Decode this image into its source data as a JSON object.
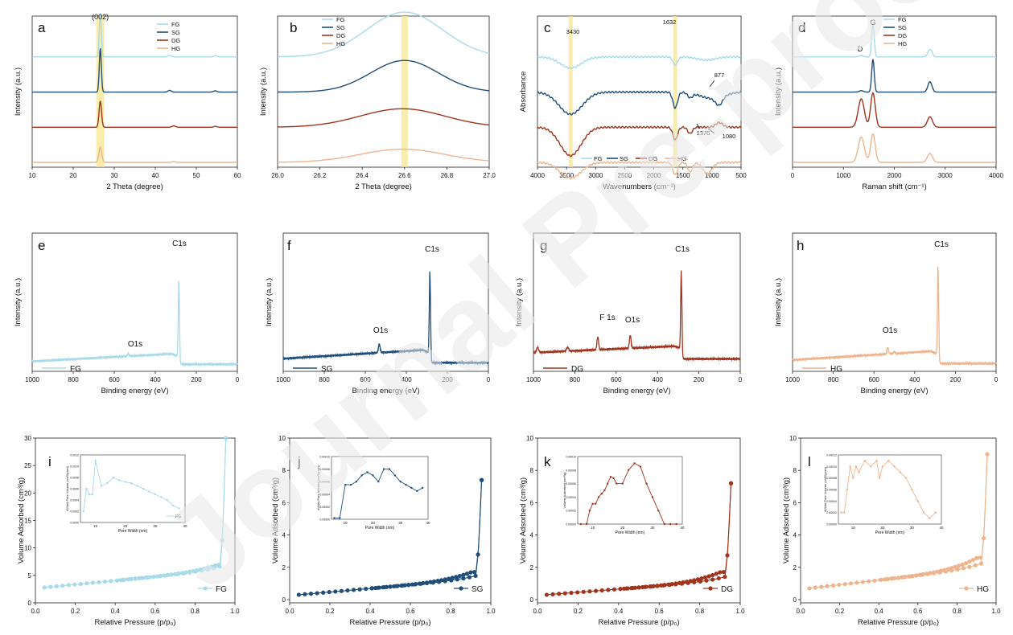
{
  "figure": {
    "colors": {
      "FG": "#a8daea",
      "SG": "#1f4e79",
      "DG": "#a0341c",
      "HG": "#eeb48d",
      "highlight": "#f7e58a"
    },
    "watermark": "Journal Pre-proof"
  },
  "chart_data": [
    {
      "panel": "a",
      "type": "line",
      "title": "",
      "xlabel": "2 Theta (degree)",
      "ylabel": "Intensity (a.u.)",
      "xlim": [
        10,
        60
      ],
      "xticks": [
        "10",
        "20",
        "30",
        "40",
        "50",
        "60"
      ],
      "annotations": [
        "(002)"
      ],
      "highlight_x": [
        26.6
      ],
      "legend": [
        "FG",
        "SG",
        "DG",
        "HG"
      ],
      "legend_position": "top-right",
      "series": [
        {
          "name": "FG",
          "offset": 3,
          "peaks": [
            [
              26.6,
              1.0,
              0.25
            ],
            [
              43.5,
              0.04,
              0.4
            ],
            [
              54.6,
              0.03,
              0.4
            ]
          ]
        },
        {
          "name": "SG",
          "offset": 2,
          "peaks": [
            [
              26.6,
              1.0,
              0.25
            ],
            [
              43.5,
              0.04,
              0.4
            ],
            [
              54.6,
              0.03,
              0.4
            ]
          ]
        },
        {
          "name": "DG",
          "offset": 1,
          "peaks": [
            [
              26.6,
              0.6,
              0.3
            ],
            [
              44.5,
              0.03,
              0.4
            ],
            [
              54.6,
              0.02,
              0.4
            ]
          ]
        },
        {
          "name": "HG",
          "offset": 0,
          "peaks": [
            [
              26.6,
              0.35,
              0.35
            ],
            [
              44.5,
              0.02,
              0.4
            ]
          ]
        }
      ]
    },
    {
      "panel": "b",
      "type": "line",
      "title": "",
      "xlabel": "2 Theta (degree)",
      "ylabel": "Intensity (a.u.)",
      "xlim": [
        26.0,
        27.0
      ],
      "xticks": [
        "26.0",
        "26.2",
        "26.4",
        "26.6",
        "26.8",
        "27.0"
      ],
      "highlight_x": [
        26.6
      ],
      "legend": [
        "FG",
        "SG",
        "DG",
        "HG"
      ],
      "legend_position": "top-left",
      "series": [
        {
          "name": "FG",
          "offset": 3,
          "peaks": [
            [
              26.6,
              0.85,
              0.18
            ]
          ]
        },
        {
          "name": "SG",
          "offset": 2,
          "peaks": [
            [
              26.6,
              0.6,
              0.16
            ]
          ]
        },
        {
          "name": "DG",
          "offset": 1,
          "peaks": [
            [
              26.59,
              0.35,
              0.2
            ]
          ]
        },
        {
          "name": "HG",
          "offset": 0,
          "peaks": [
            [
              26.59,
              0.25,
              0.2
            ]
          ]
        }
      ]
    },
    {
      "panel": "c",
      "type": "line",
      "title": "",
      "xlabel": "Wavenumbers (cm⁻¹)",
      "ylabel": "Absorbance",
      "xlim": [
        4000,
        500
      ],
      "xticks": [
        "4000",
        "3500",
        "3000",
        "2500",
        "2000",
        "1500",
        "1000",
        "500"
      ],
      "annotations": [
        "3430",
        "1632",
        "877",
        "1376",
        "1080"
      ],
      "highlight_x": [
        3430,
        1632
      ],
      "legend": [
        "FG",
        "SG",
        "DG",
        "HG"
      ],
      "legend_position": "bottom",
      "series": [
        {
          "name": "FG",
          "offset": 3,
          "peaks": [
            [
              3430,
              -0.35,
              180
            ],
            [
              1632,
              -0.25,
              40
            ],
            [
              1100,
              -0.1,
              150
            ]
          ]
        },
        {
          "name": "SG",
          "offset": 2,
          "peaks": [
            [
              3430,
              -0.7,
              200
            ],
            [
              1632,
              -0.5,
              40
            ],
            [
              1376,
              -0.15,
              40
            ],
            [
              1000,
              -0.2,
              200
            ],
            [
              877,
              -0.25,
              60
            ]
          ]
        },
        {
          "name": "DG",
          "offset": 1,
          "peaks": [
            [
              3430,
              -0.9,
              180
            ],
            [
              1632,
              -0.4,
              40
            ],
            [
              1376,
              -0.2,
              40
            ],
            [
              877,
              0.15,
              60
            ]
          ]
        },
        {
          "name": "HG",
          "offset": 0,
          "peaks": [
            [
              3430,
              -0.5,
              180
            ],
            [
              1632,
              -0.4,
              40
            ],
            [
              1376,
              -0.3,
              40
            ],
            [
              1080,
              -0.35,
              80
            ]
          ]
        }
      ]
    },
    {
      "panel": "d",
      "type": "line",
      "title": "",
      "xlabel": "Raman shift (cm⁻¹)",
      "ylabel": "Intensity (a.u.)",
      "xlim": [
        0,
        4000
      ],
      "xticks": [
        "0",
        "1000",
        "2000",
        "3000",
        "4000"
      ],
      "annotations": [
        "D",
        "G"
      ],
      "legend": [
        "FG",
        "SG",
        "DG",
        "HG"
      ],
      "legend_position": "top-right",
      "series": [
        {
          "name": "FG",
          "offset": 3,
          "peaks": [
            [
              1350,
              0.05,
              40
            ],
            [
              1580,
              1.1,
              25
            ],
            [
              2700,
              0.25,
              40
            ]
          ]
        },
        {
          "name": "SG",
          "offset": 2,
          "peaks": [
            [
              1350,
              0.05,
              40
            ],
            [
              1580,
              1.1,
              25
            ],
            [
              2700,
              0.35,
              40
            ]
          ]
        },
        {
          "name": "DG",
          "offset": 1,
          "peaks": [
            [
              1350,
              0.95,
              60
            ],
            [
              1580,
              1.15,
              45
            ],
            [
              2700,
              0.35,
              50
            ]
          ]
        },
        {
          "name": "HG",
          "offset": 0,
          "peaks": [
            [
              1350,
              0.85,
              60
            ],
            [
              1580,
              0.95,
              45
            ],
            [
              2700,
              0.3,
              50
            ]
          ]
        }
      ]
    },
    {
      "panel": "e",
      "type": "line",
      "title": "",
      "xlabel": "Binding energy (eV)",
      "ylabel": "Intensity (a.u.)",
      "xlim": [
        1000,
        0
      ],
      "xticks": [
        "1000",
        "800",
        "600",
        "400",
        "200",
        "0"
      ],
      "annotations": [
        "C1s",
        "O1s"
      ],
      "legend": [
        "FG"
      ],
      "legend_position": "bottom-left",
      "series": [
        {
          "name": "FG",
          "base": 0.03,
          "step": [
            320,
            0.07
          ],
          "peaks": [
            [
              284.8,
              0.62,
              3
            ],
            [
              532,
              0.02,
              4
            ]
          ]
        }
      ]
    },
    {
      "panel": "f",
      "type": "line",
      "title": "",
      "xlabel": "Binding energy (eV)",
      "ylabel": "Intensity (a.u.)",
      "xlim": [
        1000,
        0
      ],
      "xticks": [
        "1000",
        "800",
        "600",
        "400",
        "200",
        "0"
      ],
      "annotations": [
        "C1s",
        "O1s"
      ],
      "legend": [
        "SG"
      ],
      "legend_position": "bottom-left",
      "series": [
        {
          "name": "SG",
          "base": 0.05,
          "step": [
            320,
            0.08
          ],
          "peaks": [
            [
              284.8,
              0.67,
              3
            ],
            [
              532,
              0.07,
              4
            ]
          ]
        }
      ]
    },
    {
      "panel": "g",
      "type": "line",
      "title": "",
      "xlabel": "Binding energy (eV)",
      "ylabel": "Intensity (a.u.)",
      "xlim": [
        1000,
        0
      ],
      "xticks": [
        "1000",
        "800",
        "600",
        "400",
        "200",
        "0"
      ],
      "annotations": [
        "C1s",
        "F 1s",
        "O1s"
      ],
      "legend": [
        "DG"
      ],
      "legend_position": "bottom-left",
      "series": [
        {
          "name": "DG",
          "base": 0.1,
          "step": [
            320,
            0.06
          ],
          "peaks": [
            [
              284.8,
              0.64,
              3
            ],
            [
              532,
              0.1,
              4
            ],
            [
              689,
              0.1,
              4
            ],
            [
              980,
              0.04,
              5
            ],
            [
              835,
              0.03,
              5
            ]
          ]
        }
      ]
    },
    {
      "panel": "h",
      "type": "line",
      "title": "",
      "xlabel": "Binding energy (eV)",
      "ylabel": "Intensity (a.u.)",
      "xlim": [
        1000,
        0
      ],
      "xticks": [
        "1000",
        "800",
        "600",
        "400",
        "200",
        "0"
      ],
      "annotations": [
        "C1s",
        "O1s"
      ],
      "legend": [
        "HG"
      ],
      "legend_position": "bottom-left",
      "series": [
        {
          "name": "HG",
          "base": 0.04,
          "step": [
            320,
            0.08
          ],
          "peaks": [
            [
              284.8,
              0.72,
              3
            ],
            [
              532,
              0.05,
              4
            ],
            [
              500,
              0.015,
              4
            ]
          ]
        }
      ]
    },
    {
      "panel": "i",
      "type": "scatter",
      "title": "",
      "xlabel": "Relative Pressure (p/p₀)",
      "ylabel": "Volume Adsorbed (cm³/g)",
      "xlim": [
        -0.05,
        1.05
      ],
      "ylim": [
        0,
        30
      ],
      "xticks": [
        "0.0",
        "0.2",
        "0.4",
        "0.6",
        "0.8",
        "1.0"
      ],
      "yticks": [
        "0",
        "5",
        "10",
        "15",
        "20",
        "25",
        "30"
      ],
      "legend": [
        "FG"
      ],
      "legend_position": "bottom-right",
      "series": [
        {
          "name": "FG",
          "base": 2.8,
          "lin": 3.2,
          "cap": 0.9,
          "k": 0.04,
          "top": 30.0,
          "desorb": 0.6
        }
      ],
      "inset": {
        "xlabel": "Pore Width (nm)",
        "ylabel": "dV/dw Pore Volume (cm³/g·nm)",
        "xlim": [
          5,
          40
        ],
        "xticks": [
          "10",
          "20",
          "30",
          "40"
        ],
        "yticks": [
          "0.0000",
          "0.0002",
          "0.0004",
          "0.0006",
          "0.0008",
          "0.0010",
          "0.0012"
        ],
        "legend": "FG",
        "x": [
          6,
          7,
          8,
          9,
          10,
          12,
          14,
          16,
          18,
          20,
          22,
          24,
          26,
          28,
          30,
          32,
          34,
          36,
          38
        ],
        "y": [
          0.0002,
          0.0006,
          0.0005,
          0.0005,
          0.0011,
          0.00065,
          0.0007,
          0.0008,
          0.00075,
          0.00072,
          0.0007,
          0.00065,
          0.0006,
          0.00055,
          0.0005,
          0.00045,
          0.0004,
          0.0003,
          0.00025
        ]
      }
    },
    {
      "panel": "j",
      "type": "scatter",
      "title": "",
      "xlabel": "Relative Pressure (p/p₀)",
      "ylabel": "Volume Adsorbed (cm³/g)",
      "xlim": [
        -0.05,
        1.05
      ],
      "ylim": [
        -0.2,
        10
      ],
      "xticks": [
        "0.0",
        "0.2",
        "0.4",
        "0.6",
        "0.8",
        "1.0"
      ],
      "yticks": [
        "0",
        "2",
        "4",
        "6",
        "8",
        "10"
      ],
      "legend": [
        "SG"
      ],
      "legend_position": "bottom-right",
      "series": [
        {
          "name": "SG",
          "base": 0.3,
          "lin": 1.0,
          "cap": 0.25,
          "k": 0.05,
          "top": 7.4,
          "desorb": 0.4
        }
      ],
      "inset": {
        "xlabel": "Pore Width (nm)",
        "ylabel": "dV/dw Pore Volume (cm³/g·nm)",
        "xlim": [
          5,
          40
        ],
        "xticks": [
          "10",
          "20",
          "30",
          "40"
        ],
        "yticks": [
          "0.00000",
          "0.00002",
          "0.00004",
          "0.00006",
          "0.00008",
          "0.00010"
        ],
        "x": [
          6,
          8,
          10,
          12,
          14,
          16,
          18,
          20,
          22,
          24,
          26,
          28,
          30,
          32,
          34,
          36,
          38
        ],
        "y": [
          2e-06,
          2e-06,
          5.5e-05,
          5.5e-05,
          6e-05,
          7e-05,
          7.5e-05,
          7e-05,
          6e-05,
          8e-05,
          8e-05,
          7e-05,
          6e-05,
          5.5e-05,
          5e-05,
          4.5e-05,
          5e-05
        ]
      }
    },
    {
      "panel": "k",
      "type": "scatter",
      "title": "",
      "xlabel": "Relative Pressure (p/p₀)",
      "ylabel": "Volume Adsorbed (cm³/g)",
      "xlim": [
        -0.05,
        1.05
      ],
      "ylim": [
        -0.2,
        10
      ],
      "xticks": [
        "0.0",
        "0.2",
        "0.4",
        "0.6",
        "0.8",
        "1.0"
      ],
      "yticks": [
        "0",
        "2",
        "4",
        "6",
        "8",
        "10"
      ],
      "legend": [
        "DG"
      ],
      "legend_position": "bottom-right",
      "series": [
        {
          "name": "DG",
          "base": 0.3,
          "lin": 0.9,
          "cap": 0.3,
          "k": 0.045,
          "top": 7.2,
          "desorb": 0.5
        }
      ],
      "inset": {
        "xlabel": "Pore Width (nm)",
        "ylabel": "Volume Adsorbed (cm³/g)",
        "xlim": [
          5,
          40
        ],
        "xticks": [
          "10",
          "20",
          "30",
          "40"
        ],
        "yticks": [
          "0.00000",
          "0.00002",
          "0.00004",
          "0.00006",
          "0.00008",
          "0.00010"
        ],
        "x": [
          6,
          8,
          9,
          10,
          11,
          12,
          13,
          14,
          15,
          16,
          17,
          18,
          20,
          22,
          24,
          26,
          28,
          30,
          32,
          34,
          36,
          38
        ],
        "y": [
          0.0,
          0.0,
          2e-05,
          3e-05,
          3e-05,
          4e-05,
          4.5e-05,
          5e-05,
          6e-05,
          7e-05,
          6.8e-05,
          6e-05,
          6e-05,
          8e-05,
          9e-05,
          8.5e-05,
          6e-05,
          4e-05,
          2e-05,
          0.0,
          0.0,
          0.0
        ]
      }
    },
    {
      "panel": "l",
      "type": "scatter",
      "title": "",
      "xlabel": "Relative Pressure (p/p₀)",
      "ylabel": "Volume Adsorbed (cm³/g)",
      "xlim": [
        -0.05,
        1.05
      ],
      "ylim": [
        -0.2,
        10
      ],
      "xticks": [
        "0.0",
        "0.2",
        "0.4",
        "0.6",
        "0.8",
        "1.0"
      ],
      "yticks": [
        "0",
        "2",
        "4",
        "6",
        "8",
        "10"
      ],
      "legend": [
        "HG"
      ],
      "legend_position": "bottom-right",
      "series": [
        {
          "name": "HG",
          "base": 0.7,
          "lin": 1.3,
          "cap": 0.35,
          "k": 0.05,
          "top": 9.0,
          "desorb": 0.6
        }
      ],
      "inset": {
        "xlabel": "Pore Width (nm)",
        "ylabel": "dV/dw Pore Volume (cm³/g·nm)",
        "xlim": [
          5,
          40
        ],
        "xticks": [
          "10",
          "20",
          "30",
          "40"
        ],
        "yticks": [
          "0.00000",
          "0.00002",
          "0.00004",
          "0.00006",
          "0.00008",
          "0.00010",
          "0.00012"
        ],
        "x": [
          6,
          7,
          8,
          9,
          10,
          11,
          12,
          14,
          16,
          18,
          19,
          20,
          22,
          24,
          26,
          28,
          30,
          32,
          34,
          36,
          38
        ],
        "y": [
          2e-05,
          2e-05,
          6e-05,
          0.0001,
          8e-05,
          0.0001,
          9e-05,
          0.00011,
          0.0001,
          0.00011,
          8e-05,
          0.0001,
          0.00011,
          0.0001,
          9e-05,
          8e-05,
          6e-05,
          4e-05,
          2e-05,
          1e-05,
          2e-05
        ]
      }
    }
  ]
}
